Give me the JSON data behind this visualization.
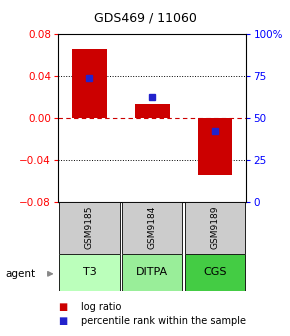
{
  "title": "GDS469 / 11060",
  "bar_values": [
    0.065,
    0.013,
    -0.055
  ],
  "percentile_ranks": [
    73.5,
    62.0,
    42.0
  ],
  "categories": [
    "GSM9185",
    "GSM9184",
    "GSM9189"
  ],
  "agents": [
    "T3",
    "DITPA",
    "CGS"
  ],
  "ylim_left": [
    -0.08,
    0.08
  ],
  "ylim_right": [
    0,
    100
  ],
  "yticks_left": [
    -0.08,
    -0.04,
    0.0,
    0.04,
    0.08
  ],
  "yticks_right": [
    0,
    25,
    50,
    75,
    100
  ],
  "bar_color": "#cc0000",
  "dot_color": "#2222cc",
  "agent_colors": [
    "#bbffbb",
    "#99ee99",
    "#44cc44"
  ],
  "sample_box_color": "#cccccc",
  "bg_color": "#ffffff",
  "zero_line_color": "#cc0000",
  "legend_log_ratio": "log ratio",
  "legend_percentile": "percentile rank within the sample",
  "bar_width": 0.55,
  "xlim": [
    -0.5,
    2.5
  ]
}
